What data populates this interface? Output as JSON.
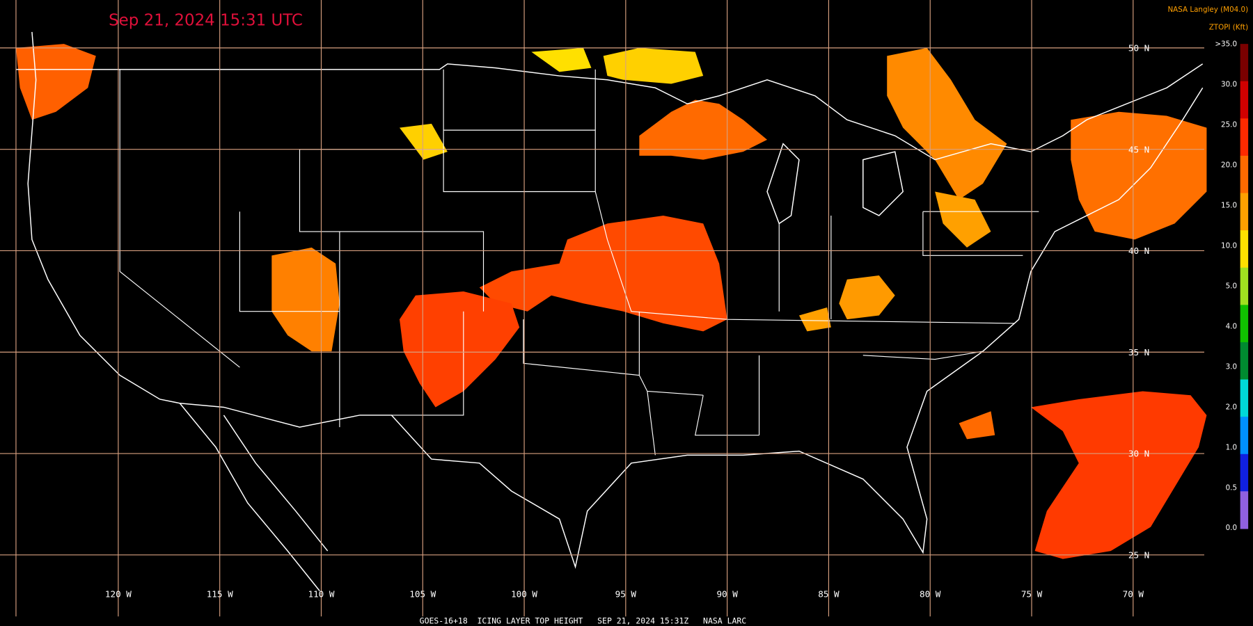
{
  "header": {
    "title": "Sep 21, 2024 15:31 UTC",
    "source": "NASA Langley (M04.0)",
    "product": "ZTOPI (Kft)"
  },
  "legend": {
    "labels": [
      ">35.0",
      "30.0",
      "25.0",
      "20.0",
      "15.0",
      "10.0",
      "5.0",
      "4.0",
      "3.0",
      "2.0",
      "1.0",
      "0.5",
      "0.0"
    ],
    "colors": [
      "#7a0000",
      "#d00000",
      "#ff2a00",
      "#ff6a00",
      "#ffa000",
      "#ffe000",
      "#a0e020",
      "#10c000",
      "#008a30",
      "#00d8d8",
      "#0090ff",
      "#1020e0",
      "#9060e0"
    ]
  },
  "map": {
    "latitude_labels": [
      "50 N",
      "45 N",
      "40 N",
      "35 N",
      "30 N",
      "25 N"
    ],
    "longitude_labels": [
      "120 W",
      "115 W",
      "110 W",
      "105 W",
      "100 W",
      "95 W",
      "90 W",
      "85 W",
      "80 W",
      "75 W",
      "70 W"
    ]
  },
  "footer": "GOES-16+18  ICING LAYER TOP HEIGHT   SEP 21, 2024 15:31Z   NASA LARC"
}
